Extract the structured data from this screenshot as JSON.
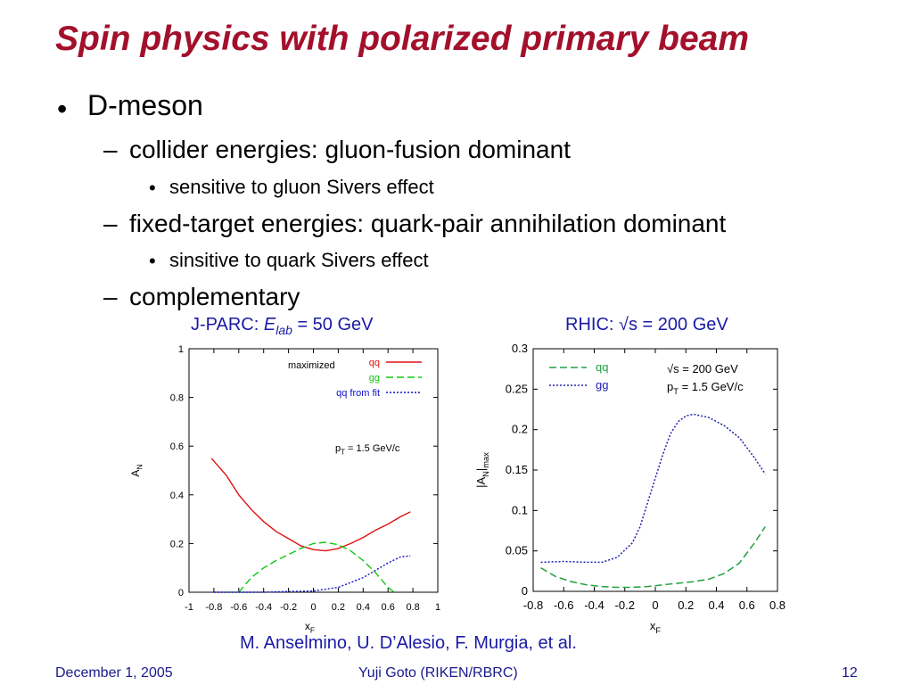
{
  "title": "Spin physics with polarized primary beam",
  "bullets": {
    "b1": "D-meson",
    "b1_1": "collider energies: gluon-fusion dominant",
    "b1_1_1": "sensitive to gluon Sivers effect",
    "b1_2": "fixed-target energies: quark-pair annihilation dominant",
    "b1_2_1": "sinsitive to quark Sivers effect",
    "b1_3": "complementary",
    "bullet_symbol": "•",
    "dash_symbol": "–"
  },
  "captions": {
    "left_prefix": "J-PARC: ",
    "left_E": "E",
    "left_sub": "lab",
    "left_suffix": " = 50 GeV",
    "right": "RHIC: √s = 200 GeV",
    "credit": "M. Anselmino, U. D’Alesio, F. Murgia, et al."
  },
  "footer": {
    "date": "December 1, 2005",
    "author": "Yuji Goto (RIKEN/RBRC)",
    "page": "12"
  },
  "colors": {
    "title": "#a3102b",
    "caption": "#1a1aa6",
    "qq": "#e01010",
    "gg": "#10c810",
    "qqfit": "#1010c8",
    "right_qq": "#20a040",
    "right_gg": "#2020b0"
  },
  "chart_data": [
    {
      "type": "line",
      "xlabel": "x",
      "xlabel_sub": "F",
      "ylabel": "A",
      "ylabel_sub": "N",
      "xlim": [
        -1,
        1
      ],
      "ylim": [
        0,
        1
      ],
      "xticks": [
        "-1",
        "-0.8",
        "-0.6",
        "-0.4",
        "-0.2",
        "0",
        "0.2",
        "0.4",
        "0.6",
        "0.8",
        "1"
      ],
      "yticks": [
        "0",
        "0.2",
        "0.4",
        "0.6",
        "0.8",
        "1"
      ],
      "legend_title": "maximized",
      "annotation": "p",
      "annotation_sub": "T",
      "annotation_rest": " = 1.5 GeV/c",
      "series": [
        {
          "name": "qq",
          "style": "solid",
          "color": "#e01010",
          "x": [
            -0.82,
            -0.7,
            -0.6,
            -0.5,
            -0.4,
            -0.3,
            -0.2,
            -0.1,
            0.0,
            0.1,
            0.2,
            0.3,
            0.4,
            0.5,
            0.6,
            0.7,
            0.78
          ],
          "y": [
            0.55,
            0.48,
            0.4,
            0.34,
            0.29,
            0.25,
            0.22,
            0.19,
            0.175,
            0.17,
            0.18,
            0.2,
            0.225,
            0.255,
            0.28,
            0.31,
            0.33
          ]
        },
        {
          "name": "gg",
          "style": "dashed",
          "color": "#10c810",
          "x": [
            -0.6,
            -0.5,
            -0.4,
            -0.3,
            -0.2,
            -0.1,
            0.0,
            0.1,
            0.2,
            0.3,
            0.4,
            0.5,
            0.6,
            0.65
          ],
          "y": [
            0.0,
            0.06,
            0.1,
            0.13,
            0.155,
            0.18,
            0.2,
            0.205,
            0.195,
            0.17,
            0.13,
            0.08,
            0.02,
            0.0
          ]
        },
        {
          "name": "qq from fit",
          "style": "dotted",
          "color": "#1010c8",
          "x": [
            -0.8,
            -0.6,
            -0.4,
            -0.2,
            0.0,
            0.2,
            0.3,
            0.4,
            0.5,
            0.6,
            0.7,
            0.78
          ],
          "y": [
            0.0,
            0.0,
            0.0,
            0.003,
            0.005,
            0.02,
            0.04,
            0.06,
            0.09,
            0.12,
            0.145,
            0.15
          ]
        }
      ]
    },
    {
      "type": "line",
      "xlabel": "x",
      "xlabel_sub": "F",
      "ylabel": "|A",
      "ylabel_sub": "N",
      "ylabel_rest": "|",
      "ylabel_sub2": "max",
      "xlim": [
        -0.8,
        0.8
      ],
      "ylim": [
        0,
        0.3
      ],
      "xticks": [
        "-0.8",
        "-0.6",
        "-0.4",
        "-0.2",
        "0",
        "0.2",
        "0.4",
        "0.6",
        "0.8"
      ],
      "yticks": [
        "0",
        "0.05",
        "0.1",
        "0.15",
        "0.2",
        "0.25",
        "0.3"
      ],
      "annotation1": "√s = 200 GeV",
      "annotation2": "p",
      "annotation2_sub": "T",
      "annotation2_rest": " = 1.5 GeV/c",
      "series": [
        {
          "name": "qq",
          "style": "dashed",
          "color": "#20a040",
          "x": [
            -0.75,
            -0.65,
            -0.55,
            -0.45,
            -0.35,
            -0.25,
            -0.15,
            -0.05,
            0.05,
            0.15,
            0.25,
            0.35,
            0.45,
            0.55,
            0.65,
            0.72
          ],
          "y": [
            0.029,
            0.018,
            0.012,
            0.008,
            0.006,
            0.005,
            0.005,
            0.006,
            0.008,
            0.01,
            0.012,
            0.015,
            0.022,
            0.035,
            0.06,
            0.08
          ]
        },
        {
          "name": "gg",
          "style": "dotted",
          "color": "#2020b0",
          "x": [
            -0.75,
            -0.6,
            -0.45,
            -0.35,
            -0.25,
            -0.15,
            -0.1,
            -0.05,
            0.0,
            0.05,
            0.1,
            0.15,
            0.2,
            0.25,
            0.35,
            0.45,
            0.55,
            0.65,
            0.72
          ],
          "y": [
            0.036,
            0.037,
            0.036,
            0.036,
            0.042,
            0.06,
            0.08,
            0.11,
            0.14,
            0.17,
            0.195,
            0.21,
            0.217,
            0.219,
            0.215,
            0.205,
            0.19,
            0.165,
            0.145
          ]
        }
      ]
    }
  ]
}
